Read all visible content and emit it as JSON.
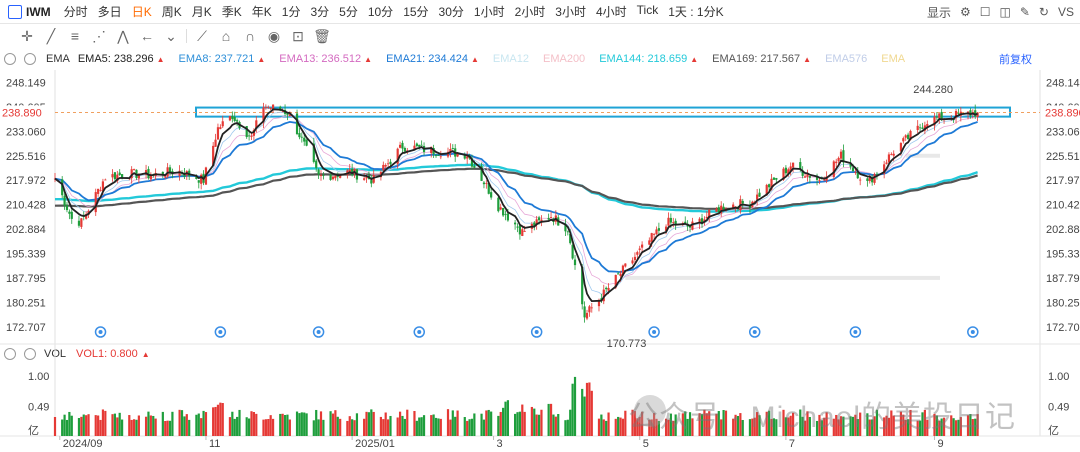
{
  "toolbar": {
    "symbol": "IWM",
    "timeframes": [
      "分时",
      "多日",
      "日K",
      "周K",
      "月K",
      "季K",
      "年K",
      "1分",
      "3分",
      "5分",
      "10分",
      "15分",
      "30分",
      "1小时",
      "2小时",
      "3小时",
      "4小时",
      "Tick",
      "1天 : 1分K"
    ],
    "active_timeframe": "日K",
    "display_label": "显示",
    "compare_label": "VS"
  },
  "ema_legend": {
    "title": "EMA",
    "items": [
      {
        "label": "EMA5:",
        "value": "238.296",
        "color": "#222222"
      },
      {
        "label": "EMA8:",
        "value": "237.721",
        "color": "#2e8fd8"
      },
      {
        "label": "EMA13:",
        "value": "236.512",
        "color": "#d46ac0"
      },
      {
        "label": "EMA21:",
        "value": "234.424",
        "color": "#1e7ad6"
      },
      {
        "label": "EMA12",
        "value": "",
        "color": "#c8e6f0"
      },
      {
        "label": "EMA200",
        "value": "",
        "color": "#f4c0c8"
      },
      {
        "label": "EMA144:",
        "value": "218.659",
        "color": "#23c9d9"
      },
      {
        "label": "EMA169:",
        "value": "217.567",
        "color": "#555555"
      },
      {
        "label": "EMA576",
        "value": "",
        "color": "#c0cde8"
      },
      {
        "label": "EMA",
        "value": "",
        "color": "#f0d890"
      }
    ],
    "adjust_label": "前复权"
  },
  "vol_legend": {
    "title": "VOL",
    "label": "VOL1:",
    "value": "0.800"
  },
  "price_axis": {
    "ticks": [
      "248.149",
      "240.605",
      "233.060",
      "225.516",
      "217.972",
      "210.428",
      "202.884",
      "195.339",
      "187.795",
      "180.251",
      "172.707"
    ],
    "current_price": "238.890",
    "high_label": "244.280",
    "low_label": "170.773"
  },
  "volume_axis": {
    "ticks": [
      "1.00",
      "0.49",
      "亿"
    ]
  },
  "time_axis": {
    "labels": [
      "2024/09",
      "11",
      "2025/01",
      "3",
      "5",
      "7",
      "9"
    ]
  },
  "watermark": "公众号 · Michael的美投日记",
  "colors": {
    "up": "#e53935",
    "down": "#1e9e3c",
    "highlight_box": "#1fa3d6",
    "support_band": "#e8e8e8"
  },
  "chart_data": {
    "type": "candlestick",
    "title": "",
    "xlabel": "",
    "ylabel": "",
    "ylim": [
      168.0,
      252.0
    ],
    "x_range": [
      "2024-08-30",
      "2025-09-20"
    ],
    "price_path": [
      {
        "date": "2024-08-30",
        "close": 218.5
      },
      {
        "date": "2024-09-06",
        "close": 206.0
      },
      {
        "date": "2024-09-10",
        "close": 205.0
      },
      {
        "date": "2024-09-20",
        "close": 219.0
      },
      {
        "date": "2024-09-30",
        "close": 220.0
      },
      {
        "date": "2024-10-10",
        "close": 219.5
      },
      {
        "date": "2024-10-20",
        "close": 221.0
      },
      {
        "date": "2024-10-31",
        "close": 218.0
      },
      {
        "date": "2024-11-06",
        "close": 234.0
      },
      {
        "date": "2024-11-12",
        "close": 238.0
      },
      {
        "date": "2024-11-20",
        "close": 231.0
      },
      {
        "date": "2024-11-25",
        "close": 241.0
      },
      {
        "date": "2024-12-05",
        "close": 239.0
      },
      {
        "date": "2024-12-10",
        "close": 232.0
      },
      {
        "date": "2024-12-18",
        "close": 219.0
      },
      {
        "date": "2024-12-31",
        "close": 220.5
      },
      {
        "date": "2025-01-10",
        "close": 218.0
      },
      {
        "date": "2025-01-22",
        "close": 228.5
      },
      {
        "date": "2025-02-05",
        "close": 227.0
      },
      {
        "date": "2025-02-18",
        "close": 226.0
      },
      {
        "date": "2025-03-03",
        "close": 210.0
      },
      {
        "date": "2025-03-13",
        "close": 202.0
      },
      {
        "date": "2025-03-25",
        "close": 207.0
      },
      {
        "date": "2025-04-01",
        "close": 203.0
      },
      {
        "date": "2025-04-08",
        "close": 176.0
      },
      {
        "date": "2025-04-15",
        "close": 182.0
      },
      {
        "date": "2025-04-25",
        "close": 191.0
      },
      {
        "date": "2025-05-12",
        "close": 205.0
      },
      {
        "date": "2025-05-22",
        "close": 203.5
      },
      {
        "date": "2025-06-05",
        "close": 210.0
      },
      {
        "date": "2025-06-16",
        "close": 211.0
      },
      {
        "date": "2025-07-03",
        "close": 222.5
      },
      {
        "date": "2025-07-15",
        "close": 218.0
      },
      {
        "date": "2025-07-24",
        "close": 225.5
      },
      {
        "date": "2025-08-04",
        "close": 217.0
      },
      {
        "date": "2025-08-15",
        "close": 227.0
      },
      {
        "date": "2025-08-29",
        "close": 236.5
      },
      {
        "date": "2025-09-10",
        "close": 238.0
      },
      {
        "date": "2025-09-19",
        "close": 238.89
      }
    ],
    "series": [
      {
        "name": "EMA5",
        "color": "#222222",
        "last": 238.296
      },
      {
        "name": "EMA21",
        "color": "#1e7ad6",
        "last": 234.424
      },
      {
        "name": "EMA144",
        "color": "#23c9d9",
        "last": 218.659
      },
      {
        "name": "EMA169",
        "color": "#555555",
        "last": 217.567
      }
    ],
    "high": {
      "date": "2025-09-18",
      "value": 244.28
    },
    "low": {
      "date": "2025-04-08",
      "value": 170.773
    },
    "last_close": 238.89,
    "resistance_zone": [
      237.6,
      240.4
    ],
    "support_levels": [
      225.516,
      187.795
    ],
    "volume_ylim": [
      0,
      1.2
    ],
    "volume_unit": "亿"
  }
}
